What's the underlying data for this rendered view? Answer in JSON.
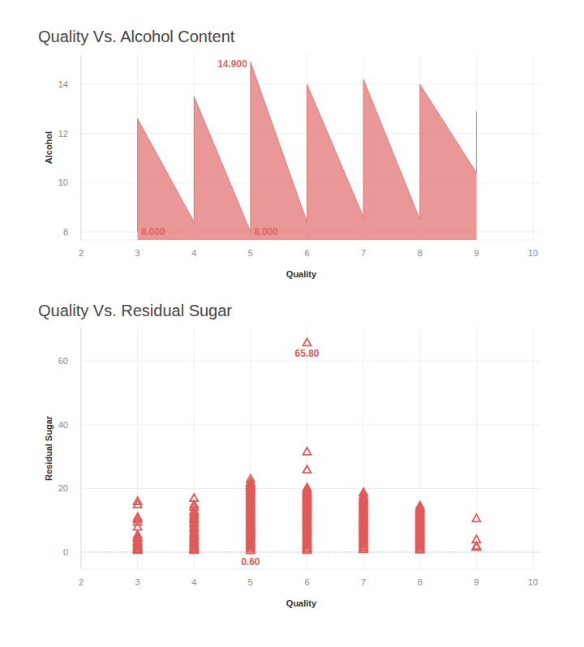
{
  "chart_data": [
    {
      "type": "area",
      "title": "Quality Vs. Alcohol Content",
      "x_label": "Quality",
      "y_label": "Alcohol",
      "x": [
        3,
        3,
        4,
        4,
        5,
        5,
        6,
        6,
        7,
        7,
        8,
        8,
        9,
        9
      ],
      "values": [
        8.0,
        12.6,
        8.4,
        13.5,
        8.0,
        14.9,
        8.4,
        14.0,
        8.6,
        14.2,
        8.5,
        14.0,
        10.4,
        12.9
      ],
      "color": "#e06666",
      "xlim": [
        2,
        10
      ],
      "ylim": [
        7.67,
        15.19
      ],
      "xticks": [
        2,
        3,
        4,
        5,
        6,
        7,
        8,
        9,
        10
      ],
      "yticks": [
        8,
        10,
        12,
        14
      ],
      "grid": true,
      "annotations": [
        {
          "x": 5,
          "y": 14.9,
          "label": "14.900"
        },
        {
          "x": 3,
          "y": 8.0,
          "label": "8.000"
        },
        {
          "x": 5,
          "y": 8.0,
          "label": "8.000"
        }
      ]
    },
    {
      "type": "scatter",
      "title": "Quality Vs. Residual Sugar",
      "x_label": "Quality",
      "y_label": "Residual Sugar",
      "marker": "triangle",
      "x": [
        3,
        3,
        3,
        3,
        3,
        3,
        3,
        3,
        3,
        3,
        3,
        3,
        3,
        3,
        3,
        3,
        3,
        4,
        4,
        4,
        4,
        4,
        4,
        4,
        4,
        4,
        4,
        4,
        4,
        4,
        4,
        4,
        4,
        4,
        4,
        4,
        4,
        4,
        4,
        4,
        4,
        4,
        5,
        5,
        5,
        5,
        5,
        5,
        5,
        5,
        5,
        5,
        5,
        5,
        5,
        5,
        5,
        5,
        5,
        5,
        5,
        5,
        5,
        5,
        5,
        5,
        5,
        5,
        5,
        5,
        5,
        5,
        5,
        5,
        5,
        5,
        5,
        5,
        5,
        5,
        5,
        5,
        5,
        5,
        5,
        5,
        5,
        6,
        6,
        6,
        6,
        6,
        6,
        6,
        6,
        6,
        6,
        6,
        6,
        6,
        6,
        6,
        6,
        6,
        6,
        6,
        6,
        6,
        6,
        6,
        6,
        6,
        6,
        6,
        6,
        6,
        6,
        6,
        6,
        6,
        6,
        6,
        6,
        6,
        6,
        6,
        6,
        6,
        6,
        6,
        7,
        7,
        7,
        7,
        7,
        7,
        7,
        7,
        7,
        7,
        7,
        7,
        7,
        7,
        7,
        7,
        7,
        7,
        7,
        7,
        7,
        7,
        7,
        7,
        7,
        7,
        7,
        7,
        7,
        7,
        7,
        7,
        7,
        7,
        7,
        8,
        8,
        8,
        8,
        8,
        8,
        8,
        8,
        8,
        8,
        8,
        8,
        8,
        8,
        8,
        8,
        8,
        8,
        8,
        8,
        8,
        8,
        8,
        8,
        8,
        8,
        8,
        8,
        9,
        9,
        9,
        9
      ],
      "values": [
        0.7,
        1.0,
        1.2,
        1.6,
        2.0,
        2.4,
        3.0,
        3.5,
        4.2,
        4.8,
        5.5,
        8.0,
        9.5,
        10.5,
        11.0,
        15.0,
        16.0,
        0.7,
        1.0,
        1.4,
        1.8,
        2.2,
        2.8,
        3.3,
        3.8,
        4.5,
        5.0,
        5.6,
        6.2,
        7.0,
        7.6,
        8.2,
        9.0,
        9.6,
        10.4,
        11.0,
        11.6,
        12.4,
        13.0,
        14.2,
        15.0,
        17.0,
        0.6,
        1.1,
        1.6,
        2.1,
        2.6,
        3.1,
        3.6,
        4.1,
        4.6,
        5.1,
        5.6,
        6.1,
        6.6,
        7.1,
        7.6,
        8.1,
        8.6,
        9.1,
        9.6,
        10.1,
        10.6,
        11.1,
        11.6,
        12.1,
        12.6,
        13.1,
        13.6,
        14.1,
        14.6,
        15.1,
        15.6,
        16.1,
        16.6,
        17.1,
        17.6,
        18.1,
        18.6,
        19.1,
        19.6,
        20.1,
        20.6,
        21.1,
        21.6,
        22.0,
        23.0,
        0.7,
        1.2,
        1.7,
        2.2,
        2.7,
        3.2,
        3.7,
        4.2,
        4.7,
        5.2,
        5.7,
        6.2,
        6.7,
        7.2,
        7.7,
        8.2,
        8.7,
        9.2,
        9.7,
        10.2,
        10.7,
        11.2,
        11.7,
        12.2,
        12.7,
        13.2,
        13.7,
        14.2,
        14.7,
        15.2,
        15.7,
        16.2,
        16.7,
        17.2,
        17.7,
        18.2,
        18.7,
        19.2,
        19.7,
        20.3,
        25.9,
        31.6,
        65.8,
        0.9,
        1.4,
        1.9,
        2.4,
        2.9,
        3.4,
        3.9,
        4.4,
        4.9,
        5.4,
        5.9,
        6.4,
        6.9,
        7.4,
        7.9,
        8.4,
        8.9,
        9.4,
        9.9,
        10.4,
        10.9,
        11.4,
        11.9,
        12.4,
        12.9,
        13.4,
        13.9,
        14.4,
        15.0,
        15.6,
        16.2,
        16.8,
        17.4,
        18.0,
        18.8,
        0.8,
        1.3,
        1.8,
        2.3,
        2.8,
        3.3,
        3.8,
        4.3,
        4.8,
        5.3,
        5.8,
        6.3,
        6.8,
        7.3,
        7.8,
        8.3,
        8.8,
        9.3,
        9.8,
        10.3,
        10.8,
        11.3,
        11.8,
        12.3,
        12.8,
        13.3,
        14.0,
        14.6,
        1.6,
        2.0,
        4.0,
        10.6
      ],
      "color": "#e05a5a",
      "xlim": [
        2,
        10
      ],
      "ylim": [
        -5.34,
        70.48
      ],
      "xticks": [
        2,
        3,
        4,
        5,
        6,
        7,
        8,
        9,
        10
      ],
      "yticks": [
        0,
        20,
        40,
        60
      ],
      "grid": true,
      "annotations": [
        {
          "x": 6,
          "y": 65.8,
          "label": "65.80"
        },
        {
          "x": 5,
          "y": 0.6,
          "label": "0.60"
        }
      ]
    }
  ]
}
